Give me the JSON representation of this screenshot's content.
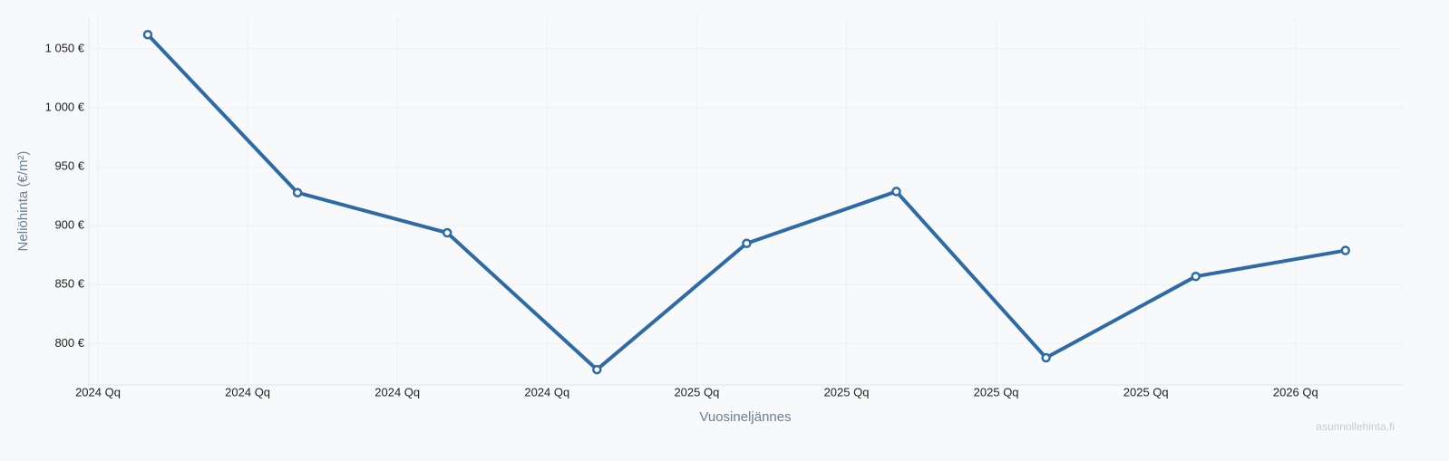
{
  "chart_data": {
    "type": "line",
    "x_label": "Vuosineljännes",
    "y_label": "Neliöhinta (€/m²)",
    "watermark": "asunnollehinta.fi",
    "categories": [
      "2024 Qq",
      "2024 Qq",
      "2024 Qq",
      "2024 Qq",
      "2025 Qq",
      "2025 Qq",
      "2025 Qq",
      "2025 Qq",
      "2026 Qq"
    ],
    "series": [
      {
        "name": "Neliöhinta",
        "color": "#2e6aa6",
        "values": [
          1062,
          928,
          894,
          778,
          885,
          929,
          788,
          857,
          879
        ]
      }
    ],
    "ylim": [
      765,
      1076
    ],
    "yticks": [
      {
        "value": 800,
        "label": "800 €"
      },
      {
        "value": 850,
        "label": "850 €"
      },
      {
        "value": 900,
        "label": "900 €"
      },
      {
        "value": 950,
        "label": "950 €"
      },
      {
        "value": 1000,
        "label": "1 000 €"
      },
      {
        "value": 1050,
        "label": "1 050 €"
      }
    ],
    "grid": true
  }
}
